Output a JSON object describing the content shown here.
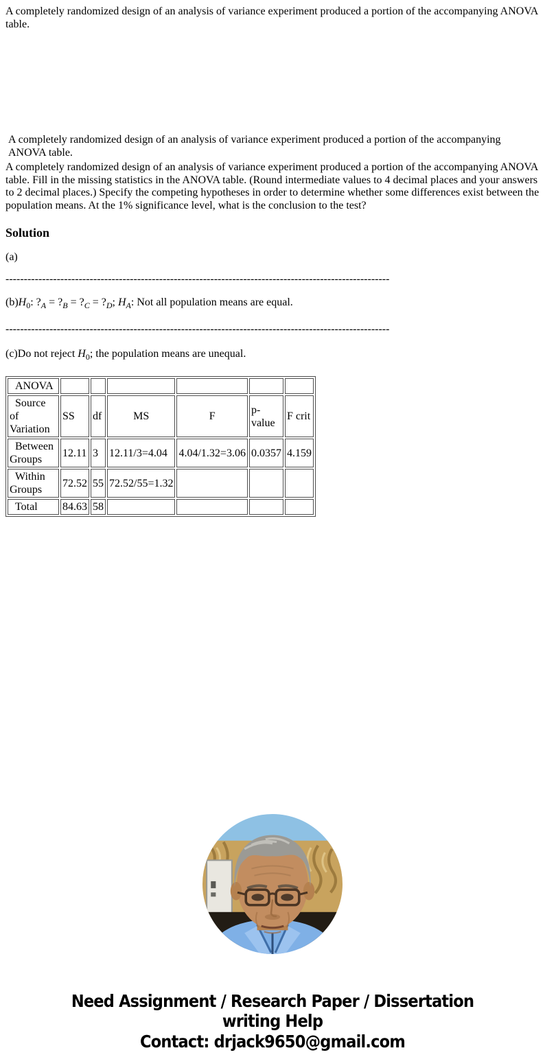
{
  "document": {
    "intro_text": "A completely randomized design of an analysis of variance experiment produced a portion of the accompanying ANOVA table.",
    "repeat_text": " A completely randomized design of an analysis of variance experiment produced a portion of the accompanying\n ANOVA table.",
    "question_text": "A completely randomized design of an analysis of variance experiment produced a portion of the accompanying ANOVA table. Fill in the missing statistics in the ANOVA table. (Round intermediate values to 4 decimal places and your answers to 2 decimal places.) Specify the competing hypotheses in order to determine whether some differences exist between the population means. At the 1% significance level, what is the conclusion to the test?",
    "solution_heading": "Solution",
    "part_a_label": "(a)",
    "separator": "---------------------------------------------------------------------------------------------------------",
    "part_b_segments": [
      {
        "t": "(b)"
      },
      {
        "t": "H",
        "f": "i"
      },
      {
        "t": "0",
        "f": "sub"
      },
      {
        "t": ": ?"
      },
      {
        "t": "A",
        "f": "isub"
      },
      {
        "t": " = ?"
      },
      {
        "t": "B",
        "f": "isub"
      },
      {
        "t": " = ?"
      },
      {
        "t": "C",
        "f": "isub"
      },
      {
        "t": " = ?"
      },
      {
        "t": "D",
        "f": "isub"
      },
      {
        "t": "; "
      },
      {
        "t": "H",
        "f": "i"
      },
      {
        "t": "A",
        "f": "isub"
      },
      {
        "t": ": Not all population means are equal."
      }
    ],
    "part_c_segments": [
      {
        "t": "(c)Do not reject "
      },
      {
        "t": "H",
        "f": "i"
      },
      {
        "t": "0",
        "f": "sub"
      },
      {
        "t": "; the population means are unequal."
      }
    ]
  },
  "anova_table": {
    "rows": [
      {
        "cells": [
          "  ANOVA",
          "",
          "",
          "",
          "",
          "",
          ""
        ]
      },
      {
        "cells": [
          "  Source of\nVariation",
          "SS",
          "df",
          "MS",
          "F",
          "p-value",
          "F crit"
        ]
      },
      {
        "cells": [
          "  Between\nGroups",
          "12.11",
          "3",
          "12.11/3=4.04",
          "4.04/1.32=3.06",
          "0.0357",
          "4.159"
        ]
      },
      {
        "cells": [
          "  Within\nGroups",
          "72.52",
          "55",
          "72.52/55=1.32",
          "",
          "",
          ""
        ]
      },
      {
        "cells": [
          "  Total",
          "84.63",
          "58",
          "",
          "",
          "",
          ""
        ]
      }
    ]
  },
  "footer": {
    "promo_text": "Need Assignment / Research Paper / Dissertation\nwriting Help\nContact: drjack9650@gmail.com"
  },
  "colors": {
    "text": "#000000",
    "table_border": "#4d4d4d",
    "avatar_sky": "#8ec1e4",
    "avatar_curtain": "#c8a35e",
    "avatar_curtain_dark": "#8a6a30",
    "avatar_dark_band": "#221c14",
    "avatar_skin": "#c28d60",
    "avatar_hair": "#9b9a95",
    "avatar_shirt": "#7fb0e6"
  }
}
